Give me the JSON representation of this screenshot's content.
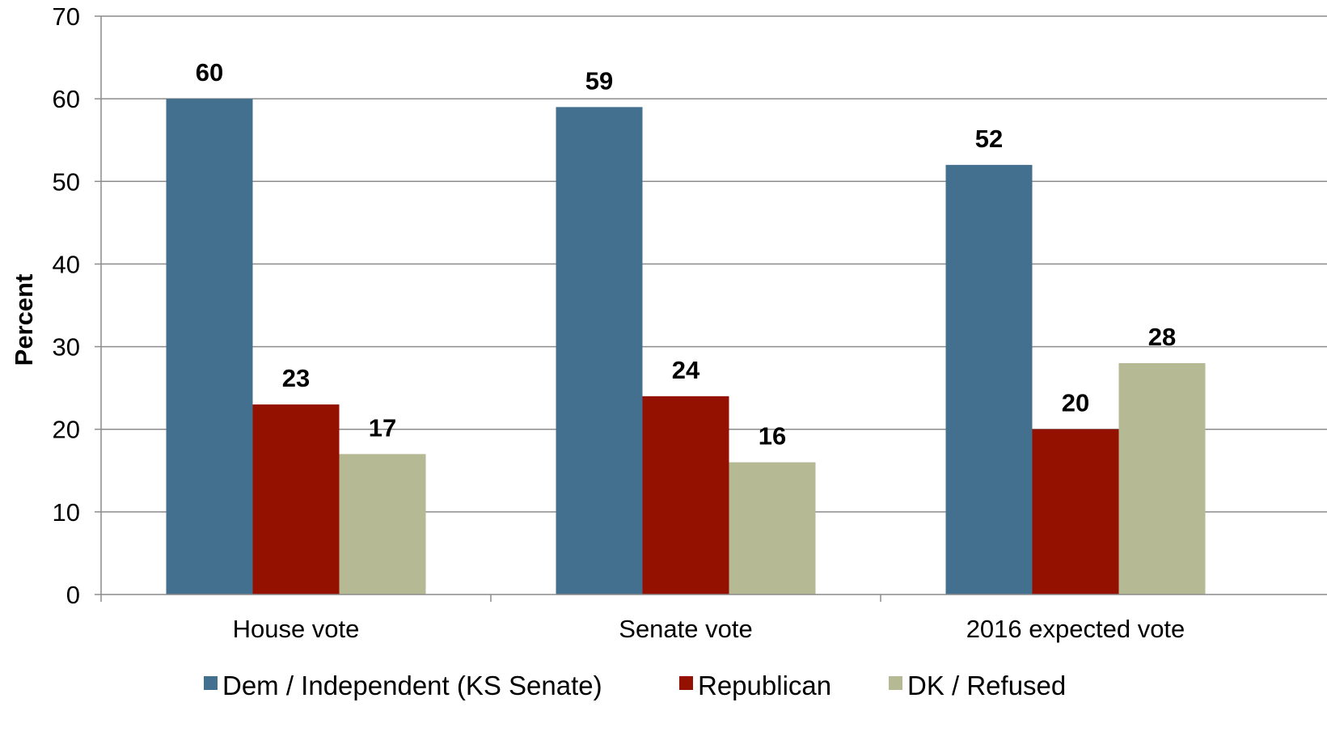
{
  "chart_data": {
    "type": "bar",
    "ylabel": "Percent",
    "xlabel": "",
    "ylim": [
      0,
      70
    ],
    "yticks": [
      0,
      10,
      20,
      30,
      40,
      50,
      60,
      70
    ],
    "grid": true,
    "legend_position": "bottom",
    "categories": [
      "House vote",
      "Senate vote",
      "2016 expected vote"
    ],
    "series": [
      {
        "name": "Dem / Independent (KS Senate)",
        "values": [
          60,
          59,
          52
        ],
        "color": "#44708F"
      },
      {
        "name": "Republican",
        "values": [
          23,
          24,
          20
        ],
        "color": "#941100"
      },
      {
        "name": "DK / Refused",
        "values": [
          17,
          16,
          28
        ],
        "color": "#B5B994"
      }
    ]
  }
}
